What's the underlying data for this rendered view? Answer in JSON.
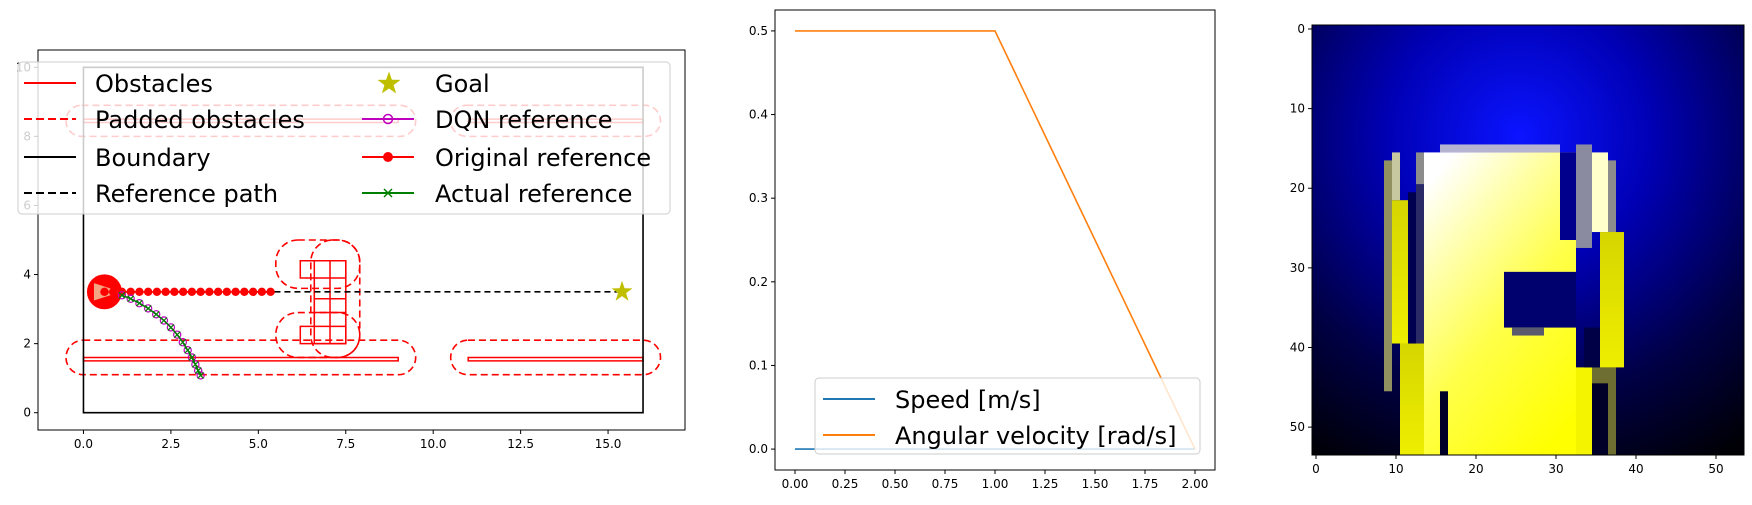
{
  "chart_data": [
    {
      "type": "scatter",
      "title": "",
      "xlim": [
        -1.3,
        17.2
      ],
      "ylim": [
        -0.5,
        10.5
      ],
      "x_ticks": [
        0.0,
        2.5,
        5.0,
        7.5,
        10.0,
        12.5,
        15.0,
        17.5
      ],
      "x_tick_labels": [
        "0.0",
        "2.5",
        "5.0",
        "7.5",
        "10.0",
        "12.5",
        "15.0"
      ],
      "y_ticks": [
        0,
        2,
        4,
        6,
        8,
        10
      ],
      "y_tick_labels": [
        "0",
        "2",
        "4",
        "6",
        "8",
        "10"
      ],
      "legend": {
        "placement": "upper-center",
        "items": [
          {
            "label": "Obstacles",
            "color": "#ff0000",
            "style": "solid"
          },
          {
            "label": "Padded obstacles",
            "color": "#ff0000",
            "style": "dashed"
          },
          {
            "label": "Boundary",
            "color": "#000000",
            "style": "solid"
          },
          {
            "label": "Reference path",
            "color": "#000000",
            "style": "dashed"
          },
          {
            "label": "Goal",
            "color": "#bfbf00",
            "style": "star"
          },
          {
            "label": "DQN reference",
            "color": "#bf00bf",
            "style": "line-open-circle"
          },
          {
            "label": "Original reference",
            "color": "#ff0000",
            "style": "line-filled-circle"
          },
          {
            "label": "Actual reference",
            "color": "#008000",
            "style": "line-x"
          }
        ]
      },
      "boundary": [
        [
          0,
          0
        ],
        [
          16,
          0
        ],
        [
          16,
          10
        ],
        [
          0,
          10
        ]
      ],
      "obstacles": [
        [
          [
            0.0,
            1.5
          ],
          [
            9.0,
            1.5
          ],
          [
            9.0,
            1.6
          ],
          [
            0.0,
            1.6
          ]
        ],
        [
          [
            11.0,
            1.5
          ],
          [
            16.0,
            1.5
          ],
          [
            16.0,
            1.6
          ],
          [
            11.0,
            1.6
          ]
        ],
        [
          [
            0.0,
            8.4
          ],
          [
            9.0,
            8.4
          ],
          [
            9.0,
            8.5
          ],
          [
            0.0,
            8.5
          ]
        ],
        [
          [
            11.0,
            8.4
          ],
          [
            16.0,
            8.4
          ],
          [
            16.0,
            8.5
          ],
          [
            11.0,
            8.5
          ]
        ],
        [
          [
            6.2,
            3.9
          ],
          [
            7.5,
            3.9
          ],
          [
            7.5,
            4.4
          ],
          [
            6.2,
            4.4
          ]
        ],
        [
          [
            6.2,
            2.0
          ],
          [
            7.5,
            2.0
          ],
          [
            7.5,
            2.5
          ],
          [
            6.2,
            2.5
          ]
        ],
        [
          [
            6.6,
            2.0
          ],
          [
            7.5,
            2.0
          ],
          [
            7.5,
            4.4
          ],
          [
            6.6,
            4.4
          ]
        ]
      ],
      "padded_obstacles": [
        [
          -0.5,
          1.1,
          9.5,
          2.1
        ],
        [
          10.5,
          1.1,
          16.5,
          2.1
        ],
        [
          -0.5,
          8.0,
          9.5,
          8.9
        ],
        [
          10.5,
          8.0,
          16.5,
          8.9
        ],
        [
          5.5,
          3.6,
          7.9,
          5.0
        ],
        [
          5.5,
          1.6,
          7.9,
          2.9
        ],
        [
          6.5,
          1.6,
          7.9,
          5.0
        ]
      ],
      "reference_path": {
        "x": [
          0.6,
          15.4
        ],
        "y": [
          3.5,
          3.5
        ]
      },
      "goal": {
        "x": 15.4,
        "y": 3.5
      },
      "robot": {
        "x": 0.6,
        "y": 3.5,
        "radius": 0.5
      },
      "original_reference": {
        "x": [
          0.6,
          0.85,
          1.1,
          1.35,
          1.6,
          1.85,
          2.1,
          2.35,
          2.6,
          2.85,
          3.1,
          3.35,
          3.6,
          3.85,
          4.1,
          4.35,
          4.6,
          4.85,
          5.1,
          5.35
        ],
        "y": [
          3.5,
          3.5,
          3.5,
          3.5,
          3.5,
          3.5,
          3.5,
          3.5,
          3.5,
          3.5,
          3.5,
          3.5,
          3.5,
          3.5,
          3.5,
          3.5,
          3.5,
          3.5,
          3.5,
          3.5
        ]
      },
      "dqn_reference": {
        "x": [
          1.1,
          1.35,
          1.6,
          1.85,
          2.08,
          2.3,
          2.5,
          2.68,
          2.84,
          2.98,
          3.1,
          3.2,
          3.28,
          3.35
        ],
        "y": [
          3.4,
          3.3,
          3.17,
          3.02,
          2.85,
          2.67,
          2.47,
          2.26,
          2.04,
          1.81,
          1.6,
          1.4,
          1.22,
          1.08
        ]
      },
      "actual_reference": {
        "x": [
          1.1,
          1.35,
          1.6,
          1.85,
          2.08,
          2.3,
          2.5,
          2.68,
          2.84,
          2.98,
          3.1,
          3.2,
          3.28,
          3.35
        ],
        "y": [
          3.4,
          3.3,
          3.17,
          3.02,
          2.85,
          2.67,
          2.47,
          2.26,
          2.04,
          1.81,
          1.6,
          1.4,
          1.22,
          1.08
        ]
      }
    },
    {
      "type": "line",
      "title": "",
      "xlabel": "",
      "ylabel": "",
      "xlim": [
        -0.1,
        2.1
      ],
      "ylim": [
        -0.025,
        0.525
      ],
      "x_ticks": [
        0.0,
        0.25,
        0.5,
        0.75,
        1.0,
        1.25,
        1.5,
        1.75,
        2.0
      ],
      "x_tick_labels": [
        "0.00",
        "0.25",
        "0.50",
        "0.75",
        "1.00",
        "1.25",
        "1.50",
        "1.75",
        "2.00"
      ],
      "y_ticks": [
        0.0,
        0.1,
        0.2,
        0.3,
        0.4,
        0.5
      ],
      "y_tick_labels": [
        "0.0",
        "0.1",
        "0.2",
        "0.3",
        "0.4",
        "0.5"
      ],
      "legend": {
        "placement": "lower-center"
      },
      "series": [
        {
          "name": "Speed [m/s]",
          "color": "#1f77b4",
          "x": [
            0,
            1,
            2
          ],
          "y": [
            0,
            0,
            0
          ]
        },
        {
          "name": "Angular velocity [rad/s]",
          "color": "#ff7f0e",
          "x": [
            0,
            1,
            2
          ],
          "y": [
            0.5,
            0.5,
            0
          ]
        }
      ]
    },
    {
      "type": "heatmap",
      "title": "",
      "rows": 54,
      "cols": 54,
      "xlim": [
        -0.5,
        53.5
      ],
      "ylim": [
        53.5,
        -0.5
      ],
      "x_ticks": [
        0,
        10,
        20,
        30,
        40,
        50
      ],
      "x_tick_labels": [
        "0",
        "10",
        "20",
        "30",
        "40",
        "50"
      ],
      "y_ticks": [
        0,
        10,
        20,
        30,
        40,
        50
      ],
      "y_tick_labels": [
        "0",
        "10",
        "20",
        "30",
        "40",
        "50"
      ],
      "background": "blue radial gradient, brightest near row 14, col 26",
      "yellow_region": "free space, white-to-yellow gradient",
      "grey_region": "padded obstacle edges"
    }
  ]
}
